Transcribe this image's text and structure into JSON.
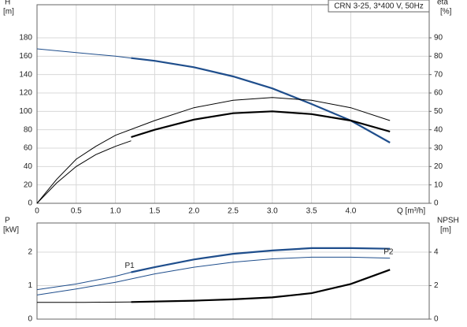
{
  "chart_data": [
    {
      "type": "line",
      "title": "CRN 3-25, 3*400 V, 50Hz",
      "ylabel": "H",
      "yunit": "[m]",
      "y2label": "eta",
      "y2unit": "[%]",
      "xlabel": "Q [m³/h]",
      "xlim": [
        0,
        5
      ],
      "ylim": [
        0,
        216
      ],
      "y2lim": [
        0,
        108
      ],
      "grid": true,
      "xtick_labels": true,
      "xticks": [
        0,
        0.5,
        {
          "value": 1,
          "label": "1.0"
        },
        1.5,
        {
          "value": 2,
          "label": "2.0"
        },
        2.5,
        {
          "value": 3,
          "label": "3.0"
        },
        3.5,
        {
          "value": 4,
          "label": "4.0"
        }
      ],
      "yticks": [
        0,
        20,
        40,
        60,
        80,
        100,
        120,
        140,
        160,
        180
      ],
      "y2ticks": [
        0,
        10,
        20,
        30,
        40,
        50,
        60,
        70,
        80,
        90
      ],
      "series": [
        {
          "color": "#1f4e8c",
          "width": 1,
          "x": [
            0,
            0.5,
            1.0,
            1.2
          ],
          "values": [
            168,
            164,
            160,
            158
          ]
        },
        {
          "color": "#1f4e8c",
          "width": 2.2,
          "x": [
            1.2,
            1.5,
            2.0,
            2.5,
            3.0,
            3.5,
            4.0,
            4.5
          ],
          "values": [
            158,
            155,
            148,
            138,
            125,
            108,
            90,
            66
          ]
        },
        {
          "color": "#000000",
          "width": 1,
          "axis": "y2",
          "x": [
            0,
            0.25,
            0.5,
            0.75,
            1.0,
            1.2
          ],
          "values": [
            0,
            11,
            20,
            26.5,
            31,
            34
          ]
        },
        {
          "color": "#000000",
          "width": 2.2,
          "axis": "y2",
          "x": [
            1.2,
            1.5,
            2.0,
            2.5,
            3.0,
            3.5,
            4.0,
            4.5
          ],
          "values": [
            36,
            40,
            45.5,
            49,
            50,
            48.5,
            45,
            39
          ]
        },
        {
          "color": "#000000",
          "width": 1,
          "axis": "y2",
          "x": [
            0,
            0.25,
            0.5,
            0.75,
            1.0,
            1.5,
            2.0,
            2.5,
            3.0,
            3.5,
            4.0,
            4.5
          ],
          "values": [
            0,
            13,
            24,
            31,
            37,
            45,
            52,
            56,
            57.5,
            56,
            52,
            45
          ]
        }
      ]
    },
    {
      "type": "line",
      "ylabel": "P",
      "yunit": "[kW]",
      "y2label": "NPSH",
      "y2unit": "[m]",
      "xlim": [
        0,
        5
      ],
      "ylim": [
        0,
        2.87
      ],
      "y2lim": [
        0,
        5.74
      ],
      "grid": true,
      "xtick_labels": false,
      "xticks": [
        0,
        0.5,
        1,
        1.5,
        2,
        2.5,
        3,
        3.5,
        4
      ],
      "yticks": [
        0,
        1,
        2
      ],
      "y2ticks": [
        0,
        2,
        4
      ],
      "series": [
        {
          "name": "P1",
          "color": "#1f4e8c",
          "width": 1,
          "x": [
            0,
            0.5,
            1.0,
            1.2
          ],
          "values": [
            0.88,
            1.05,
            1.28,
            1.4
          ]
        },
        {
          "color": "#1f4e8c",
          "width": 2.2,
          "x": [
            1.2,
            1.5,
            2.0,
            2.5,
            3.0,
            3.5,
            4.0,
            4.5
          ],
          "values": [
            1.4,
            1.55,
            1.78,
            1.95,
            2.05,
            2.12,
            2.12,
            2.1
          ]
        },
        {
          "name": "P2",
          "color": "#1f4e8c",
          "width": 1,
          "x": [
            0,
            0.5,
            1.0,
            1.5,
            2.0,
            2.5,
            3.0,
            3.5,
            4.0,
            4.5
          ],
          "values": [
            0.72,
            0.9,
            1.1,
            1.35,
            1.55,
            1.7,
            1.8,
            1.85,
            1.85,
            1.82
          ]
        },
        {
          "color": "#000000",
          "width": 1,
          "axis": "y2",
          "x": [
            0,
            0.6,
            1.2
          ],
          "values": [
            1.0,
            1.0,
            1.02
          ]
        },
        {
          "color": "#000000",
          "width": 2.2,
          "axis": "y2",
          "x": [
            1.2,
            2.0,
            2.5,
            3.0,
            3.5,
            4.0,
            4.5
          ],
          "values": [
            1.02,
            1.1,
            1.18,
            1.3,
            1.55,
            2.1,
            2.95
          ]
        }
      ]
    }
  ]
}
